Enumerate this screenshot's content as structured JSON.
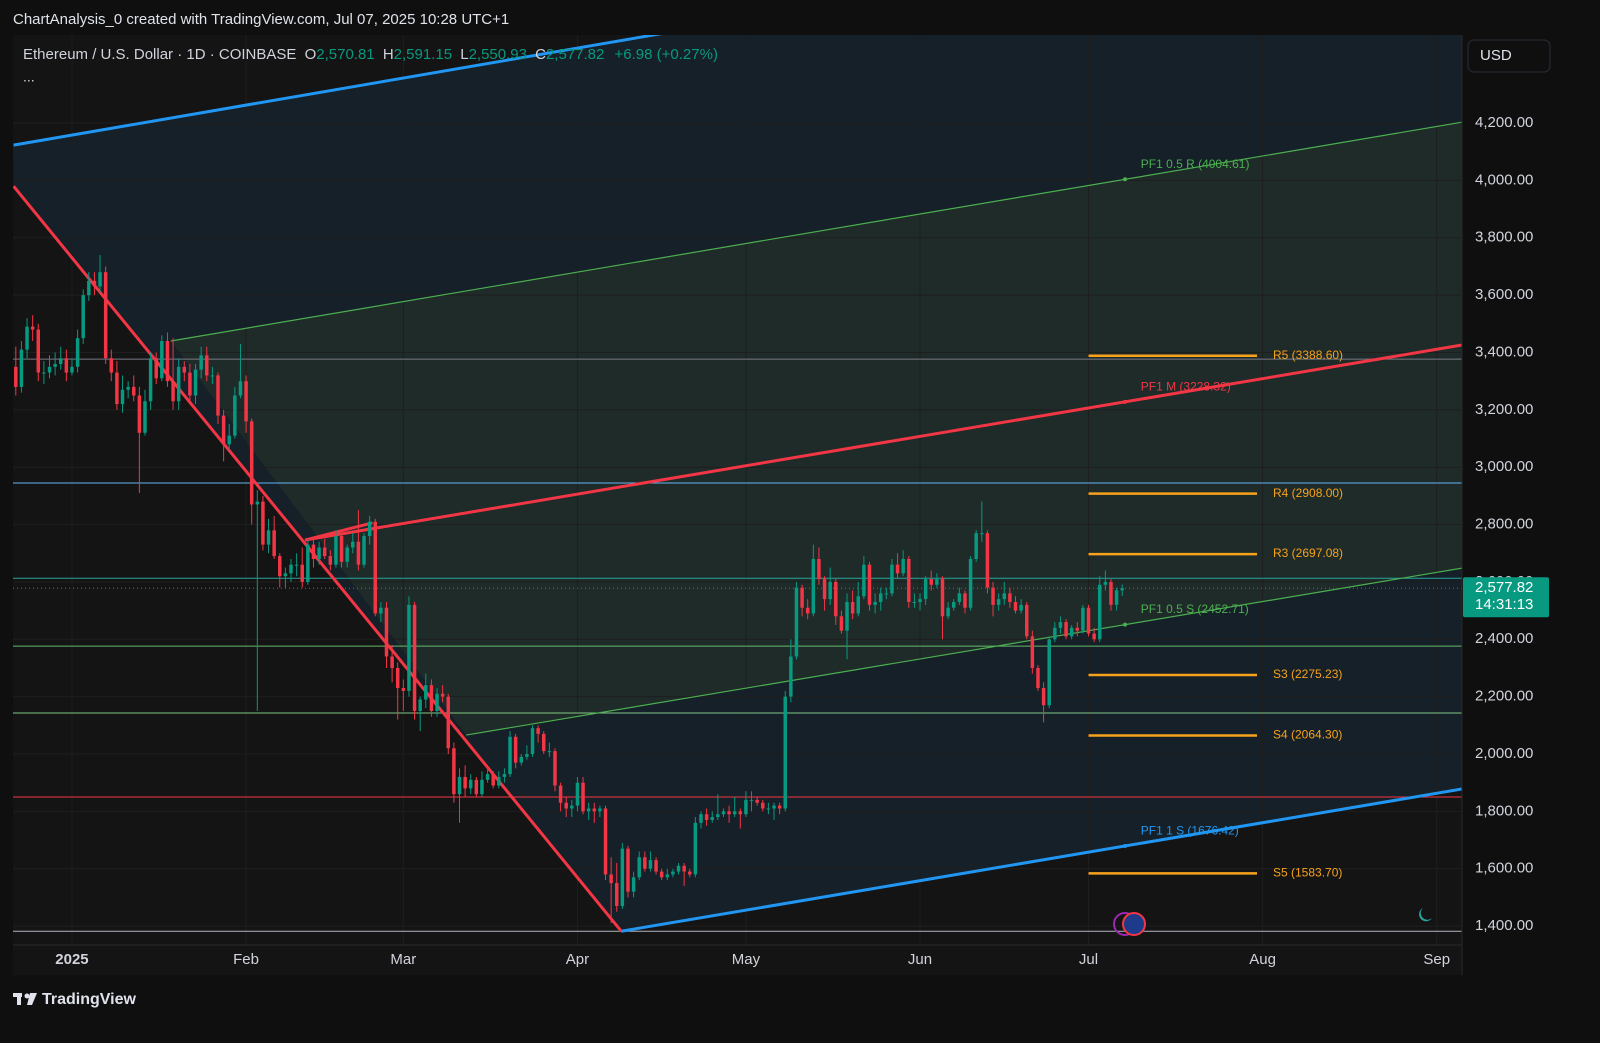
{
  "header": "ChartAnalysis_0 created with TradingView.com, Jul 07, 2025 10:28 UTC+1",
  "legend": {
    "symbol": "Ethereum / U.S. Dollar · 1D · COINBASE",
    "items": [
      {
        "key": "O",
        "value": "2,570.81"
      },
      {
        "key": "H",
        "value": "2,591.15"
      },
      {
        "key": "L",
        "value": "2,550.93"
      },
      {
        "key": "C",
        "value": "2,577.82"
      }
    ],
    "change": "+6.98 (+0.27%)",
    "more": "..."
  },
  "currency": "USD",
  "footer": "TradingView",
  "chart_data": {
    "type": "candlestick",
    "up_color": "#089981",
    "down_color": "#f23645",
    "xlim": [
      -0.5,
      257.5
    ],
    "ylim": [
      1334,
      4507
    ],
    "xticks": [
      {
        "value": 10,
        "label": "2025"
      },
      {
        "value": 41,
        "label": "Feb"
      },
      {
        "value": 69,
        "label": "Mar"
      },
      {
        "value": 100,
        "label": "Apr"
      },
      {
        "value": 130,
        "label": "May"
      },
      {
        "value": 161,
        "label": "Jun"
      },
      {
        "value": 191,
        "label": "Jul"
      },
      {
        "value": 222,
        "label": "Aug"
      },
      {
        "value": 253,
        "label": "Sep"
      }
    ],
    "yticks": [
      {
        "value": 1400,
        "label": "1,400.00"
      },
      {
        "value": 1600,
        "label": "1,600.00"
      },
      {
        "value": 1800,
        "label": "1,800.00"
      },
      {
        "value": 2000,
        "label": "2,000.00"
      },
      {
        "value": 2200,
        "label": "2,200.00"
      },
      {
        "value": 2400,
        "label": "2,400.00"
      },
      {
        "value": 2600,
        "label": "2,600.00"
      },
      {
        "value": 2800,
        "label": "2,800.00"
      },
      {
        "value": 3000,
        "label": "3,000.00"
      },
      {
        "value": 3200,
        "label": "3,200.00"
      },
      {
        "value": 3400,
        "label": "3,400.00"
      },
      {
        "value": 3600,
        "label": "3,600.00"
      },
      {
        "value": 3800,
        "label": "3,800.00"
      },
      {
        "value": 4000,
        "label": "4,000.00"
      },
      {
        "value": 4200,
        "label": "4,200.00"
      }
    ],
    "grid": true,
    "price_tag": {
      "price": "2,577.82",
      "countdown": "14:31:13"
    },
    "candles": [
      [
        3350,
        3420,
        3250,
        3280
      ],
      [
        3280,
        3440,
        3260,
        3410
      ],
      [
        3410,
        3520,
        3380,
        3490
      ],
      [
        3490,
        3530,
        3440,
        3480
      ],
      [
        3480,
        3500,
        3300,
        3330
      ],
      [
        3330,
        3370,
        3290,
        3330
      ],
      [
        3330,
        3390,
        3310,
        3350
      ],
      [
        3350,
        3400,
        3320,
        3360
      ],
      [
        3360,
        3420,
        3340,
        3380
      ],
      [
        3380,
        3410,
        3300,
        3330
      ],
      [
        3330,
        3380,
        3320,
        3350
      ],
      [
        3350,
        3480,
        3330,
        3450
      ],
      [
        3450,
        3620,
        3430,
        3600
      ],
      [
        3600,
        3680,
        3580,
        3650
      ],
      [
        3650,
        3680,
        3600,
        3630
      ],
      [
        3630,
        3740,
        3610,
        3680
      ],
      [
        3680,
        3700,
        3360,
        3380
      ],
      [
        3380,
        3410,
        3300,
        3330
      ],
      [
        3330,
        3370,
        3200,
        3220
      ],
      [
        3220,
        3320,
        3190,
        3270
      ],
      [
        3270,
        3300,
        3240,
        3280
      ],
      [
        3280,
        3320,
        3230,
        3250
      ],
      [
        3250,
        3280,
        2910,
        3120
      ],
      [
        3120,
        3270,
        3110,
        3230
      ],
      [
        3230,
        3400,
        3200,
        3380
      ],
      [
        3380,
        3400,
        3290,
        3310
      ],
      [
        3310,
        3460,
        3300,
        3440
      ],
      [
        3440,
        3470,
        3280,
        3300
      ],
      [
        3300,
        3450,
        3200,
        3230
      ],
      [
        3230,
        3380,
        3200,
        3350
      ],
      [
        3350,
        3370,
        3300,
        3330
      ],
      [
        3330,
        3360,
        3230,
        3250
      ],
      [
        3250,
        3360,
        3220,
        3340
      ],
      [
        3340,
        3420,
        3310,
        3390
      ],
      [
        3390,
        3420,
        3300,
        3320
      ],
      [
        3320,
        3350,
        3290,
        3320
      ],
      [
        3320,
        3330,
        3150,
        3180
      ],
      [
        3180,
        3200,
        3020,
        3080
      ],
      [
        3080,
        3150,
        3060,
        3110
      ],
      [
        3110,
        3280,
        3100,
        3250
      ],
      [
        3250,
        3430,
        3240,
        3300
      ],
      [
        3300,
        3320,
        3120,
        3160
      ],
      [
        3160,
        3170,
        2800,
        2870
      ],
      [
        2870,
        2920,
        2150,
        2880
      ],
      [
        2880,
        2900,
        2710,
        2730
      ],
      [
        2730,
        2820,
        2700,
        2780
      ],
      [
        2780,
        2830,
        2680,
        2690
      ],
      [
        2690,
        2700,
        2580,
        2620
      ],
      [
        2620,
        2650,
        2580,
        2630
      ],
      [
        2630,
        2680,
        2600,
        2660
      ],
      [
        2660,
        2700,
        2620,
        2660
      ],
      [
        2660,
        2720,
        2580,
        2600
      ],
      [
        2600,
        2750,
        2590,
        2730
      ],
      [
        2730,
        2750,
        2650,
        2680
      ],
      [
        2680,
        2740,
        2660,
        2720
      ],
      [
        2720,
        2750,
        2680,
        2690
      ],
      [
        2690,
        2710,
        2640,
        2660
      ],
      [
        2660,
        2780,
        2650,
        2760
      ],
      [
        2760,
        2770,
        2650,
        2670
      ],
      [
        2670,
        2730,
        2650,
        2720
      ],
      [
        2720,
        2770,
        2700,
        2740
      ],
      [
        2740,
        2850,
        2640,
        2660
      ],
      [
        2660,
        2770,
        2650,
        2760
      ],
      [
        2760,
        2830,
        2730,
        2810
      ],
      [
        2810,
        2820,
        2480,
        2490
      ],
      [
        2490,
        2530,
        2460,
        2510
      ],
      [
        2510,
        2530,
        2300,
        2340
      ],
      [
        2340,
        2380,
        2250,
        2300
      ],
      [
        2300,
        2320,
        2120,
        2230
      ],
      [
        2230,
        2260,
        2150,
        2220
      ],
      [
        2220,
        2550,
        2200,
        2520
      ],
      [
        2520,
        2530,
        2120,
        2150
      ],
      [
        2150,
        2200,
        2080,
        2190
      ],
      [
        2190,
        2280,
        2160,
        2240
      ],
      [
        2240,
        2260,
        2130,
        2150
      ],
      [
        2150,
        2230,
        2130,
        2210
      ],
      [
        2210,
        2240,
        2180,
        2200
      ],
      [
        2200,
        2210,
        2000,
        2020
      ],
      [
        2020,
        2040,
        1830,
        1860
      ],
      [
        1860,
        1950,
        1760,
        1920
      ],
      [
        1920,
        1960,
        1850,
        1880
      ],
      [
        1880,
        1930,
        1860,
        1910
      ],
      [
        1910,
        1920,
        1850,
        1860
      ],
      [
        1860,
        1940,
        1850,
        1910
      ],
      [
        1910,
        1950,
        1900,
        1930
      ],
      [
        1930,
        1940,
        1880,
        1890
      ],
      [
        1890,
        1940,
        1880,
        1920
      ],
      [
        1920,
        1950,
        1900,
        1930
      ],
      [
        1930,
        2080,
        1920,
        2060
      ],
      [
        2060,
        2070,
        1950,
        1970
      ],
      [
        1970,
        2000,
        1960,
        1990
      ],
      [
        1990,
        2030,
        1980,
        2000
      ],
      [
        2000,
        2100,
        1990,
        2090
      ],
      [
        2090,
        2100,
        2040,
        2070
      ],
      [
        2070,
        2080,
        2000,
        2010
      ],
      [
        2010,
        2040,
        1990,
        2010
      ],
      [
        2010,
        2020,
        1870,
        1890
      ],
      [
        1890,
        1900,
        1800,
        1830
      ],
      [
        1830,
        1850,
        1780,
        1810
      ],
      [
        1810,
        1840,
        1780,
        1820
      ],
      [
        1820,
        1920,
        1800,
        1900
      ],
      [
        1900,
        1920,
        1790,
        1800
      ],
      [
        1800,
        1830,
        1770,
        1810
      ],
      [
        1810,
        1830,
        1760,
        1800
      ],
      [
        1800,
        1820,
        1780,
        1810
      ],
      [
        1810,
        1820,
        1560,
        1580
      ],
      [
        1580,
        1640,
        1410,
        1550
      ],
      [
        1550,
        1620,
        1450,
        1470
      ],
      [
        1470,
        1690,
        1460,
        1670
      ],
      [
        1670,
        1680,
        1500,
        1520
      ],
      [
        1520,
        1590,
        1500,
        1570
      ],
      [
        1570,
        1660,
        1560,
        1640
      ],
      [
        1640,
        1660,
        1590,
        1600
      ],
      [
        1600,
        1660,
        1590,
        1630
      ],
      [
        1630,
        1640,
        1580,
        1590
      ],
      [
        1590,
        1600,
        1560,
        1570
      ],
      [
        1570,
        1600,
        1560,
        1580
      ],
      [
        1580,
        1600,
        1570,
        1590
      ],
      [
        1590,
        1620,
        1580,
        1610
      ],
      [
        1610,
        1620,
        1540,
        1590
      ],
      [
        1590,
        1600,
        1570,
        1580
      ],
      [
        1580,
        1780,
        1570,
        1760
      ],
      [
        1760,
        1800,
        1740,
        1790
      ],
      [
        1790,
        1810,
        1750,
        1770
      ],
      [
        1770,
        1800,
        1760,
        1780
      ],
      [
        1780,
        1860,
        1770,
        1790
      ],
      [
        1790,
        1810,
        1780,
        1800
      ],
      [
        1800,
        1820,
        1760,
        1790
      ],
      [
        1790,
        1850,
        1780,
        1800
      ],
      [
        1800,
        1810,
        1740,
        1790
      ],
      [
        1790,
        1870,
        1780,
        1840
      ],
      [
        1840,
        1870,
        1800,
        1840
      ],
      [
        1840,
        1850,
        1820,
        1830
      ],
      [
        1830,
        1840,
        1800,
        1810
      ],
      [
        1810,
        1830,
        1790,
        1810
      ],
      [
        1810,
        1830,
        1770,
        1820
      ],
      [
        1820,
        1830,
        1790,
        1810
      ],
      [
        1810,
        2220,
        1800,
        2200
      ],
      [
        2200,
        2400,
        2180,
        2340
      ],
      [
        2340,
        2600,
        2330,
        2580
      ],
      [
        2580,
        2590,
        2480,
        2510
      ],
      [
        2510,
        2540,
        2470,
        2490
      ],
      [
        2490,
        2730,
        2480,
        2680
      ],
      [
        2680,
        2720,
        2590,
        2610
      ],
      [
        2610,
        2620,
        2500,
        2540
      ],
      [
        2540,
        2650,
        2520,
        2600
      ],
      [
        2600,
        2610,
        2450,
        2480
      ],
      [
        2480,
        2500,
        2420,
        2430
      ],
      [
        2430,
        2560,
        2330,
        2530
      ],
      [
        2530,
        2570,
        2470,
        2490
      ],
      [
        2490,
        2600,
        2480,
        2550
      ],
      [
        2550,
        2690,
        2540,
        2660
      ],
      [
        2660,
        2670,
        2500,
        2520
      ],
      [
        2520,
        2560,
        2490,
        2530
      ],
      [
        2530,
        2580,
        2500,
        2560
      ],
      [
        2560,
        2580,
        2540,
        2560
      ],
      [
        2560,
        2680,
        2550,
        2660
      ],
      [
        2660,
        2700,
        2610,
        2630
      ],
      [
        2630,
        2710,
        2620,
        2680
      ],
      [
        2680,
        2690,
        2510,
        2530
      ],
      [
        2530,
        2560,
        2510,
        2530
      ],
      [
        2530,
        2560,
        2500,
        2540
      ],
      [
        2540,
        2620,
        2520,
        2610
      ],
      [
        2610,
        2640,
        2570,
        2590
      ],
      [
        2590,
        2630,
        2580,
        2610
      ],
      [
        2610,
        2620,
        2400,
        2480
      ],
      [
        2480,
        2530,
        2470,
        2510
      ],
      [
        2510,
        2540,
        2500,
        2530
      ],
      [
        2530,
        2580,
        2520,
        2560
      ],
      [
        2560,
        2570,
        2490,
        2510
      ],
      [
        2510,
        2690,
        2500,
        2680
      ],
      [
        2680,
        2780,
        2670,
        2770
      ],
      [
        2770,
        2880,
        2740,
        2770
      ],
      [
        2770,
        2780,
        2560,
        2580
      ],
      [
        2580,
        2600,
        2480,
        2520
      ],
      [
        2520,
        2560,
        2500,
        2540
      ],
      [
        2540,
        2600,
        2520,
        2560
      ],
      [
        2560,
        2580,
        2510,
        2530
      ],
      [
        2530,
        2550,
        2490,
        2500
      ],
      [
        2500,
        2540,
        2490,
        2520
      ],
      [
        2520,
        2530,
        2400,
        2410
      ],
      [
        2410,
        2430,
        2280,
        2300
      ],
      [
        2300,
        2310,
        2220,
        2230
      ],
      [
        2230,
        2250,
        2110,
        2170
      ],
      [
        2170,
        2410,
        2160,
        2400
      ],
      [
        2400,
        2460,
        2390,
        2440
      ],
      [
        2440,
        2480,
        2420,
        2460
      ],
      [
        2460,
        2470,
        2400,
        2410
      ],
      [
        2410,
        2450,
        2400,
        2440
      ],
      [
        2440,
        2460,
        2410,
        2430
      ],
      [
        2430,
        2520,
        2420,
        2510
      ],
      [
        2510,
        2520,
        2410,
        2420
      ],
      [
        2420,
        2440,
        2390,
        2400
      ],
      [
        2400,
        2620,
        2390,
        2590
      ],
      [
        2590,
        2640,
        2570,
        2600
      ],
      [
        2600,
        2610,
        2500,
        2520
      ],
      [
        2520,
        2580,
        2500,
        2570.84
      ],
      [
        2570.81,
        2591.15,
        2550.93,
        2577.82
      ]
    ],
    "hlines": [
      {
        "value": 3377,
        "color": "#787b86"
      },
      {
        "value": 2945,
        "color": "#64b5f6"
      },
      {
        "value": 2613,
        "color": "#26a69a"
      },
      {
        "value": 2376,
        "color": "#66bb6a"
      },
      {
        "value": 2143,
        "color": "#81c784"
      },
      {
        "value": 1850,
        "color": "#f23645"
      },
      {
        "value": 1382,
        "color": "#b2b5be"
      }
    ],
    "trend_lines": [
      {
        "color": "#2196f3",
        "width": 3,
        "points": [
          [
            -0.4,
            4123
          ],
          [
            115.6,
            4514
          ]
        ]
      },
      {
        "color": "#2196f3",
        "width": 3,
        "points": [
          [
            107.8,
            1382
          ],
          [
            257.5,
            1878
          ]
        ],
        "label": "PF1 1 S (1676.42)"
      },
      {
        "color": "#f23645",
        "width": 3,
        "points": [
          [
            -0.4,
            3980
          ],
          [
            107.8,
            1382
          ]
        ]
      },
      {
        "color": "#f23645",
        "width": 3,
        "points": [
          [
            51.5,
            2746
          ],
          [
            257.5,
            3426
          ]
        ],
        "label": "PF1 M (3228.32)"
      },
      {
        "color": "#f23645",
        "width": 3,
        "points": [
          [
            51.5,
            2746
          ],
          [
            63.5,
            2806
          ]
        ]
      },
      {
        "color": "#4caf50",
        "width": 1.2,
        "points": [
          [
            27.6,
            3440
          ],
          [
            257.5,
            4203
          ]
        ],
        "label": "PF1 0.5 R (4004.61)"
      },
      {
        "color": "#4caf50",
        "width": 1.2,
        "points": [
          [
            80.2,
            2066
          ],
          [
            257.5,
            2648
          ]
        ],
        "label": "PF1 0.5 S (2452.71)"
      }
    ],
    "level_color": "#f7a21b",
    "level_span": [
      191,
      221
    ],
    "levels": [
      {
        "label": "R5 (3388.60)",
        "value": 3388.6
      },
      {
        "label": "R4 (2908.00)",
        "value": 2908.0
      },
      {
        "label": "R3 (2697.08)",
        "value": 2697.08
      },
      {
        "label": "S3 (2275.23)",
        "value": 2275.23
      },
      {
        "label": "S4 (2064.30)",
        "value": 2064.3
      },
      {
        "label": "S5 (1583.70)",
        "value": 1583.7
      }
    ]
  }
}
